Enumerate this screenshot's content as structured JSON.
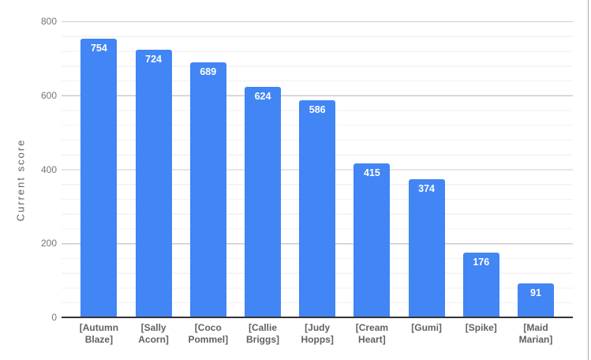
{
  "chart_data": {
    "type": "bar",
    "title": "",
    "categories": [
      "[Autumn Blaze]",
      "[Sally Acorn]",
      "[Coco Pommel]",
      "[Callie Briggs]",
      "[Judy Hopps]",
      "[Cream Heart]",
      "[Gumi]",
      "[Spike]",
      "[Maid Marian]"
    ],
    "values": [
      754,
      724,
      689,
      624,
      586,
      415,
      374,
      176,
      91
    ],
    "xlabel": "",
    "ylabel": "Current score",
    "ylim": [
      0,
      800
    ],
    "yticks": [
      0,
      200,
      400,
      600,
      800
    ],
    "minor_gridline_step": 40,
    "grid": "major+minor",
    "legend_position": "none",
    "bar_labels_shown": true
  },
  "colors": {
    "bar": "#4285f4",
    "bar_label": "#ffffff",
    "axis_line": "#333333",
    "major_gridline": "#cccccc",
    "minor_gridline": "#f2f2f2",
    "tick_label": "#757575",
    "category_label": "#616161",
    "axis_title": "#5f6368",
    "background": "#ffffff",
    "right_edge_line": "#ababab"
  }
}
